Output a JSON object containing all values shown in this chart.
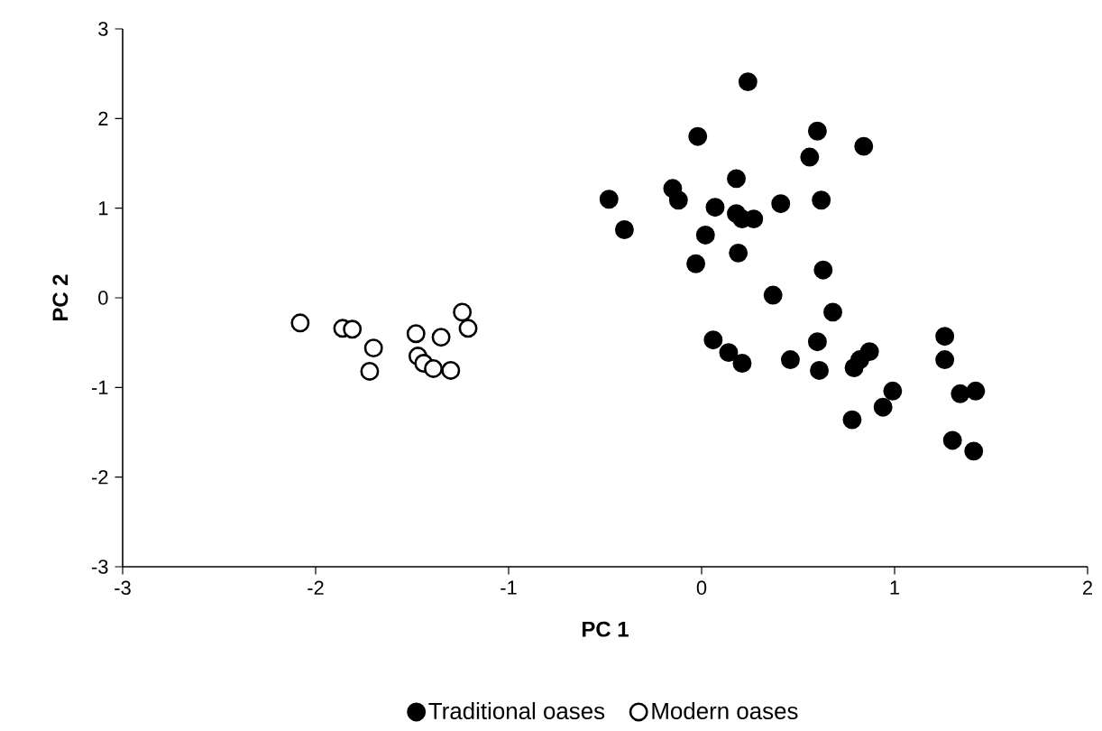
{
  "chart_data": {
    "type": "scatter",
    "xlabel": "PC 1",
    "ylabel": "PC 2",
    "xlim": [
      -3,
      2
    ],
    "ylim": [
      -3,
      3
    ],
    "xticks": [
      -3,
      -2,
      -1,
      0,
      1,
      2
    ],
    "yticks": [
      -3,
      -2,
      -1,
      0,
      1,
      2,
      3
    ],
    "legend": "bottom",
    "grid": false,
    "series": [
      {
        "name": "Traditional oases",
        "color": "#000000",
        "x": [
          0.24,
          -0.02,
          0.6,
          0.56,
          0.84,
          0.18,
          -0.48,
          -0.15,
          -0.12,
          -0.4,
          0.07,
          0.18,
          0.21,
          0.27,
          0.41,
          0.62,
          0.02,
          -0.03,
          0.19,
          0.63,
          0.37,
          0.68,
          0.06,
          0.14,
          0.21,
          0.46,
          0.6,
          0.61,
          0.79,
          0.82,
          0.87,
          0.78,
          0.99,
          0.94,
          1.26,
          1.26,
          1.34,
          1.42,
          1.3,
          1.41
        ],
        "values": [
          2.41,
          1.8,
          1.86,
          1.57,
          1.69,
          1.33,
          1.1,
          1.22,
          1.09,
          0.76,
          1.01,
          0.94,
          0.88,
          0.88,
          1.05,
          1.09,
          0.7,
          0.38,
          0.5,
          0.31,
          0.03,
          -0.16,
          -0.47,
          -0.61,
          -0.73,
          -0.69,
          -0.49,
          -0.81,
          -0.78,
          -0.69,
          -0.6,
          -1.36,
          -1.04,
          -1.22,
          -0.43,
          -0.69,
          -1.07,
          -1.04,
          -1.59,
          -1.71
        ]
      },
      {
        "name": "Modern oases",
        "color": "#ffffff",
        "x": [
          -2.08,
          -1.86,
          -1.81,
          -1.7,
          -1.72,
          -1.48,
          -1.35,
          -1.24,
          -1.21,
          -1.47,
          -1.44,
          -1.39,
          -1.3
        ],
        "values": [
          -0.28,
          -0.34,
          -0.35,
          -0.56,
          -0.82,
          -0.4,
          -0.44,
          -0.16,
          -0.34,
          -0.65,
          -0.73,
          -0.79,
          -0.81
        ]
      }
    ]
  }
}
